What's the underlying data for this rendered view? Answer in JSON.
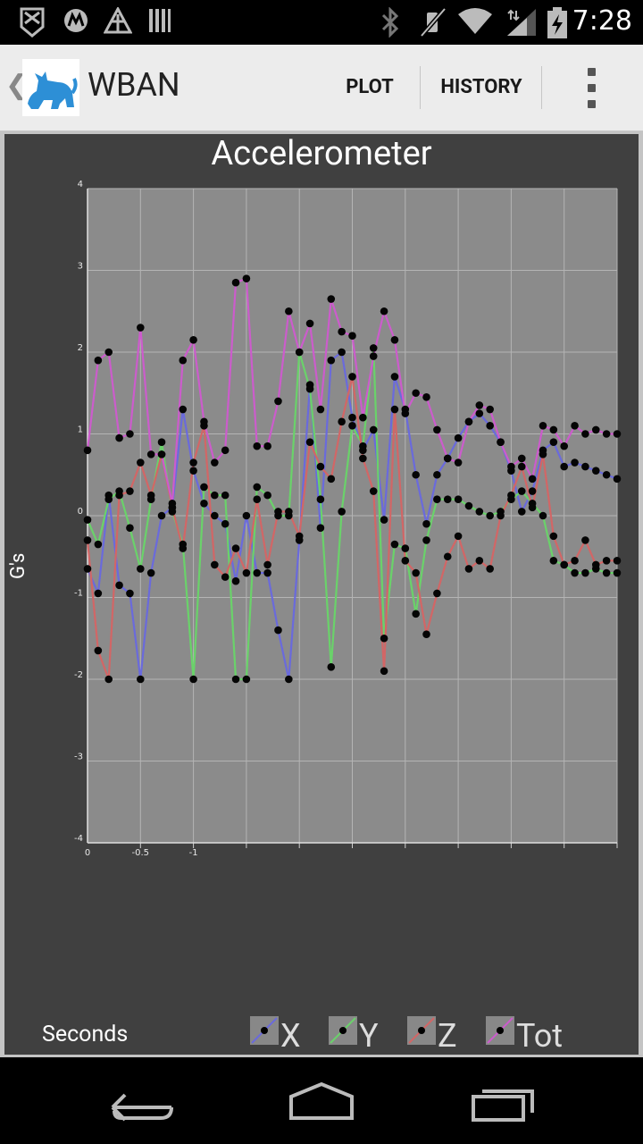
{
  "status_bar": {
    "time": "7:28",
    "icons": [
      "notification-icon",
      "motorola-icon",
      "app-notification-icon",
      "barcode-icon",
      "bluetooth-icon",
      "mute-icon",
      "wifi-icon",
      "signal-icon",
      "battery-charging-icon"
    ]
  },
  "action_bar": {
    "title": "WBAN",
    "plot_label": "PLOT",
    "history_label": "HISTORY",
    "app_icon": "cat-app-icon"
  },
  "chart_data": {
    "type": "line",
    "title": "Accelerometer",
    "ylabel": "G's",
    "xlabel": "Seconds",
    "ylim": [
      -4,
      4
    ],
    "y_ticks": [
      "4",
      "3",
      "2",
      "1",
      "0",
      "-1",
      "-2",
      "-3",
      "-4"
    ],
    "x_tick_labels": [
      "0",
      "-0.5",
      "-1"
    ],
    "grid": true,
    "legend_position": "bottom",
    "series": [
      {
        "name": "X",
        "color": "#6a6adc",
        "points": [
          [
            0,
            -0.65
          ],
          [
            0.1,
            -0.95
          ],
          [
            0.2,
            0.25
          ],
          [
            0.3,
            -0.85
          ],
          [
            0.4,
            -0.95
          ],
          [
            0.5,
            -2.0
          ],
          [
            0.6,
            -0.7
          ],
          [
            0.7,
            0.0
          ],
          [
            0.8,
            0.1
          ],
          [
            0.9,
            1.3
          ],
          [
            1.0,
            0.55
          ],
          [
            1.1,
            0.15
          ],
          [
            1.2,
            0.0
          ],
          [
            1.3,
            -0.1
          ],
          [
            1.4,
            -0.8
          ],
          [
            1.5,
            0.0
          ],
          [
            1.6,
            -0.7
          ],
          [
            1.7,
            -0.7
          ],
          [
            1.8,
            -1.4
          ],
          [
            1.9,
            -2.0
          ],
          [
            2.0,
            -0.3
          ],
          [
            2.1,
            1.6
          ],
          [
            2.2,
            -0.15
          ],
          [
            2.3,
            1.9
          ],
          [
            2.4,
            2.0
          ],
          [
            2.5,
            1.2
          ],
          [
            2.6,
            0.8
          ],
          [
            2.7,
            1.05
          ],
          [
            2.8,
            -0.05
          ],
          [
            2.9,
            1.7
          ],
          [
            3.0,
            1.3
          ],
          [
            3.1,
            0.5
          ],
          [
            3.2,
            -0.1
          ],
          [
            3.3,
            0.5
          ],
          [
            3.4,
            0.7
          ],
          [
            3.5,
            0.95
          ],
          [
            3.6,
            1.15
          ],
          [
            3.7,
            1.25
          ],
          [
            3.8,
            1.1
          ],
          [
            3.9,
            0.9
          ],
          [
            4.0,
            0.55
          ],
          [
            4.1,
            0.05
          ],
          [
            4.2,
            0.3
          ],
          [
            4.3,
            0.8
          ],
          [
            4.4,
            0.9
          ],
          [
            4.5,
            0.6
          ],
          [
            4.6,
            0.65
          ],
          [
            4.7,
            0.6
          ],
          [
            4.8,
            0.55
          ],
          [
            4.9,
            0.5
          ],
          [
            5.0,
            0.45
          ]
        ]
      },
      {
        "name": "Y",
        "color": "#6ad26a",
        "points": [
          [
            0,
            -0.05
          ],
          [
            0.1,
            -0.35
          ],
          [
            0.2,
            0.2
          ],
          [
            0.3,
            0.3
          ],
          [
            0.4,
            -0.15
          ],
          [
            0.5,
            -0.65
          ],
          [
            0.6,
            0.2
          ],
          [
            0.7,
            0.9
          ],
          [
            0.8,
            0.05
          ],
          [
            0.9,
            -0.35
          ],
          [
            1.0,
            -2.0
          ],
          [
            1.1,
            0.35
          ],
          [
            1.2,
            0.25
          ],
          [
            1.3,
            0.25
          ],
          [
            1.4,
            -2.0
          ],
          [
            1.5,
            -2.0
          ],
          [
            1.6,
            0.35
          ],
          [
            1.7,
            0.25
          ],
          [
            1.8,
            0.0
          ],
          [
            1.9,
            0.0
          ],
          [
            2.0,
            2.0
          ],
          [
            2.1,
            1.55
          ],
          [
            2.2,
            0.2
          ],
          [
            2.3,
            -1.85
          ],
          [
            2.4,
            0.05
          ],
          [
            2.5,
            1.1
          ],
          [
            2.6,
            0.85
          ],
          [
            2.7,
            2.05
          ],
          [
            2.8,
            -1.5
          ],
          [
            2.9,
            -0.35
          ],
          [
            3.0,
            -0.4
          ],
          [
            3.1,
            -1.2
          ],
          [
            3.2,
            -0.3
          ],
          [
            3.3,
            0.2
          ],
          [
            3.4,
            0.2
          ],
          [
            3.5,
            0.2
          ],
          [
            3.6,
            0.12
          ],
          [
            3.7,
            0.05
          ],
          [
            3.8,
            0.0
          ],
          [
            3.9,
            0.05
          ],
          [
            4.0,
            0.2
          ],
          [
            4.1,
            0.3
          ],
          [
            4.2,
            0.15
          ],
          [
            4.3,
            0.0
          ],
          [
            4.4,
            -0.55
          ],
          [
            4.5,
            -0.6
          ],
          [
            4.6,
            -0.7
          ],
          [
            4.7,
            -0.7
          ],
          [
            4.8,
            -0.65
          ],
          [
            4.9,
            -0.7
          ],
          [
            5.0,
            -0.7
          ]
        ]
      },
      {
        "name": "Z",
        "color": "#d26666",
        "points": [
          [
            0,
            -0.3
          ],
          [
            0.1,
            -1.65
          ],
          [
            0.2,
            -2.0
          ],
          [
            0.3,
            0.25
          ],
          [
            0.4,
            0.3
          ],
          [
            0.5,
            0.65
          ],
          [
            0.6,
            0.25
          ],
          [
            0.7,
            0.75
          ],
          [
            0.8,
            0.1
          ],
          [
            0.9,
            -0.4
          ],
          [
            1.0,
            0.65
          ],
          [
            1.1,
            1.1
          ],
          [
            1.2,
            -0.6
          ],
          [
            1.3,
            -0.75
          ],
          [
            1.4,
            -0.4
          ],
          [
            1.5,
            -0.7
          ],
          [
            1.6,
            0.2
          ],
          [
            1.7,
            -0.6
          ],
          [
            1.8,
            0.05
          ],
          [
            1.9,
            0.05
          ],
          [
            2.0,
            -0.25
          ],
          [
            2.1,
            0.9
          ],
          [
            2.2,
            0.6
          ],
          [
            2.3,
            0.45
          ],
          [
            2.4,
            1.15
          ],
          [
            2.5,
            1.7
          ],
          [
            2.6,
            0.7
          ],
          [
            2.7,
            0.3
          ],
          [
            2.8,
            -1.9
          ],
          [
            2.9,
            1.3
          ],
          [
            3.0,
            -0.55
          ],
          [
            3.1,
            -0.7
          ],
          [
            3.2,
            -1.45
          ],
          [
            3.3,
            -0.95
          ],
          [
            3.4,
            -0.5
          ],
          [
            3.5,
            -0.25
          ],
          [
            3.6,
            -0.65
          ],
          [
            3.7,
            -0.55
          ],
          [
            3.8,
            -0.65
          ],
          [
            3.9,
            0.0
          ],
          [
            4.0,
            0.25
          ],
          [
            4.1,
            0.6
          ],
          [
            4.2,
            0.1
          ],
          [
            4.3,
            0.75
          ],
          [
            4.4,
            -0.25
          ],
          [
            4.5,
            -0.6
          ],
          [
            4.6,
            -0.55
          ],
          [
            4.7,
            -0.3
          ],
          [
            4.8,
            -0.6
          ],
          [
            4.9,
            -0.55
          ],
          [
            5.0,
            -0.55
          ]
        ]
      },
      {
        "name": "Tot",
        "color": "#cc5ccc",
        "points": [
          [
            0,
            0.8
          ],
          [
            0.1,
            1.9
          ],
          [
            0.2,
            2.0
          ],
          [
            0.3,
            0.95
          ],
          [
            0.4,
            1.0
          ],
          [
            0.5,
            2.3
          ],
          [
            0.6,
            0.75
          ],
          [
            0.7,
            0.75
          ],
          [
            0.8,
            0.15
          ],
          [
            0.9,
            1.9
          ],
          [
            1.0,
            2.15
          ],
          [
            1.1,
            1.15
          ],
          [
            1.2,
            0.65
          ],
          [
            1.3,
            0.8
          ],
          [
            1.4,
            2.85
          ],
          [
            1.5,
            2.9
          ],
          [
            1.6,
            0.85
          ],
          [
            1.7,
            0.85
          ],
          [
            1.8,
            1.4
          ],
          [
            1.9,
            2.5
          ],
          [
            2.0,
            2.0
          ],
          [
            2.1,
            2.35
          ],
          [
            2.2,
            1.3
          ],
          [
            2.3,
            2.65
          ],
          [
            2.4,
            2.25
          ],
          [
            2.5,
            2.2
          ],
          [
            2.6,
            1.2
          ],
          [
            2.7,
            1.95
          ],
          [
            2.8,
            2.5
          ],
          [
            2.9,
            2.15
          ],
          [
            3.0,
            1.25
          ],
          [
            3.1,
            1.5
          ],
          [
            3.2,
            1.45
          ],
          [
            3.3,
            1.05
          ],
          [
            3.4,
            0.7
          ],
          [
            3.5,
            0.65
          ],
          [
            3.6,
            1.15
          ],
          [
            3.7,
            1.35
          ],
          [
            3.8,
            1.3
          ],
          [
            3.9,
            0.9
          ],
          [
            4.0,
            0.6
          ],
          [
            4.1,
            0.7
          ],
          [
            4.2,
            0.45
          ],
          [
            4.3,
            1.1
          ],
          [
            4.4,
            1.05
          ],
          [
            4.5,
            0.85
          ],
          [
            4.6,
            1.1
          ],
          [
            4.7,
            1.0
          ],
          [
            4.8,
            1.05
          ],
          [
            4.9,
            1.0
          ],
          [
            5.0,
            1.0
          ]
        ]
      }
    ]
  },
  "legend": [
    {
      "label": "X",
      "color": "#6a6adc"
    },
    {
      "label": "Y",
      "color": "#6ad26a"
    },
    {
      "label": "Z",
      "color": "#d26666"
    },
    {
      "label": "Tot",
      "color": "#cc5ccc"
    }
  ],
  "nav_bar": {
    "back_icon": "back-icon",
    "home_icon": "home-icon",
    "recents_icon": "recents-icon"
  }
}
